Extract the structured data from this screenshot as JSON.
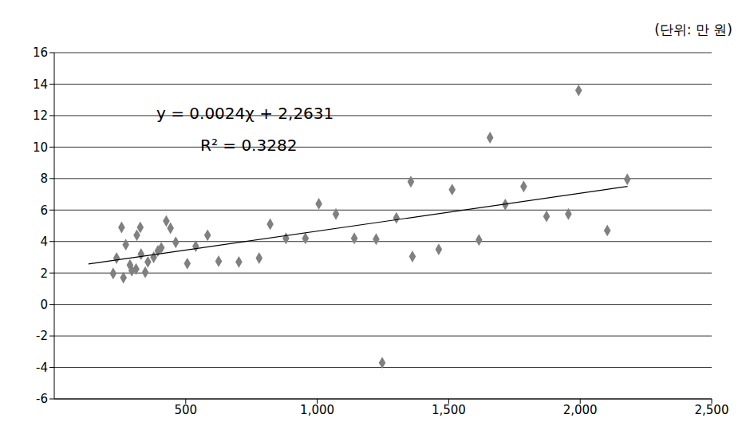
{
  "chart_data": {
    "type": "scatter",
    "unit_label": "(단위: 만 원)",
    "annotations": [
      "y = 0.0024χ + 2,2631",
      "R² = 0.3282"
    ],
    "x": [
      224,
      237,
      263,
      272,
      288,
      311,
      330,
      346,
      256,
      295,
      314,
      327,
      356,
      378,
      394,
      407,
      426,
      442,
      462,
      506,
      538,
      583,
      625,
      702,
      779,
      821,
      881,
      955,
      1006,
      1071,
      1141,
      1224,
      1301,
      1356,
      1362,
      1462,
      1513,
      1615,
      1657,
      1715,
      1785,
      1872,
      1955,
      1994,
      2103,
      2179,
      1247
    ],
    "values": [
      1.97,
      2.95,
      1.7,
      3.8,
      2.5,
      2.25,
      3.2,
      2.05,
      4.9,
      2.15,
      4.4,
      4.9,
      2.7,
      3.0,
      3.4,
      3.6,
      5.3,
      4.85,
      3.95,
      2.6,
      3.7,
      4.4,
      2.75,
      2.7,
      2.95,
      5.1,
      4.2,
      4.2,
      6.4,
      5.75,
      4.2,
      4.15,
      5.5,
      7.8,
      3.05,
      3.5,
      7.3,
      4.1,
      10.6,
      6.35,
      7.5,
      5.6,
      5.75,
      13.6,
      4.7,
      7.95,
      -3.7
    ],
    "color": "#808080",
    "marker": "diamond",
    "trendline": {
      "x": [
        130,
        2180
      ],
      "values": [
        2.57,
        7.5
      ],
      "color": "#000000"
    },
    "xlim": [
      0,
      2500
    ],
    "xticks": [
      500,
      {
        "value": 1000,
        "label": "1,000"
      },
      {
        "value": 1500,
        "label": "1,500"
      },
      {
        "value": 2000,
        "label": "2,000"
      },
      {
        "value": 2500,
        "label": "2,500"
      }
    ],
    "ylim": [
      -6,
      16
    ],
    "yticks": [
      -6,
      -4,
      -2,
      0,
      2,
      4,
      6,
      8,
      10,
      12,
      14,
      16
    ],
    "grid": true
  }
}
